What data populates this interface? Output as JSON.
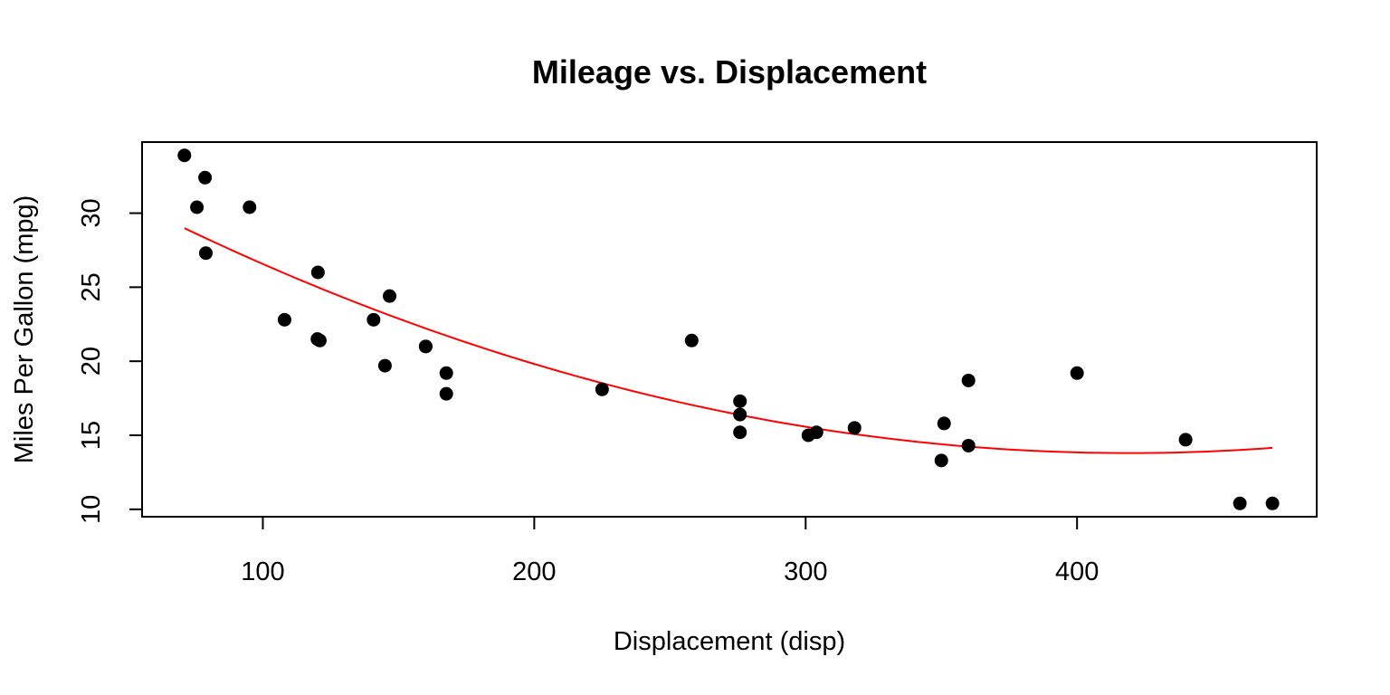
{
  "chart_data": {
    "type": "scatter",
    "title": "Mileage vs. Displacement",
    "xlabel": "Displacement (disp)",
    "ylabel": "Miles Per Gallon (mpg)",
    "xlim": [
      55.5,
      488.3
    ],
    "ylim": [
      9.5,
      34.8
    ],
    "xticks": [
      100,
      200,
      300,
      400
    ],
    "yticks": [
      10,
      15,
      20,
      25,
      30
    ],
    "grid": false,
    "legend": "none",
    "point_color": "#000000",
    "fit_color": "#ff0000",
    "series": [
      {
        "points": [
          [
            160,
            21.0
          ],
          [
            160,
            21.0
          ],
          [
            108,
            22.8
          ],
          [
            258,
            21.4
          ],
          [
            360,
            18.7
          ],
          [
            225,
            18.1
          ],
          [
            360,
            14.3
          ],
          [
            146.7,
            24.4
          ],
          [
            140.8,
            22.8
          ],
          [
            167.6,
            19.2
          ],
          [
            167.6,
            17.8
          ],
          [
            275.8,
            16.4
          ],
          [
            275.8,
            17.3
          ],
          [
            275.8,
            15.2
          ],
          [
            472,
            10.4
          ],
          [
            460,
            10.4
          ],
          [
            440,
            14.7
          ],
          [
            78.7,
            32.4
          ],
          [
            75.7,
            30.4
          ],
          [
            71.1,
            33.9
          ],
          [
            120.1,
            21.5
          ],
          [
            318,
            15.5
          ],
          [
            304,
            15.2
          ],
          [
            350,
            13.3
          ],
          [
            400,
            19.2
          ],
          [
            79,
            27.3
          ],
          [
            120.3,
            26.0
          ],
          [
            95.1,
            30.4
          ],
          [
            351,
            15.8
          ],
          [
            145,
            19.7
          ],
          [
            301,
            15.0
          ],
          [
            121,
            21.4
          ]
        ]
      }
    ],
    "fit": {
      "type": "quadratic",
      "coefficients": [
        35.83,
        -0.10517,
        0.00012551
      ],
      "x_range": [
        71.1,
        472
      ]
    }
  }
}
